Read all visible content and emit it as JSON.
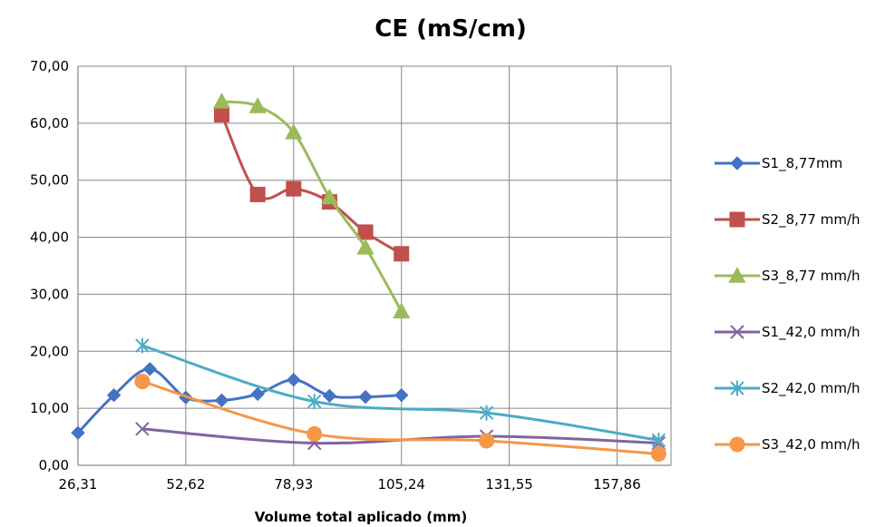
{
  "chart_data": {
    "type": "line",
    "title": "CE (mS/cm)",
    "xlabel": "Volume total aplicado (mm)",
    "ylabel": "",
    "xlim": [
      26.31,
      171.02
    ],
    "ylim": [
      0,
      70
    ],
    "x_ticks": [
      "26,31",
      "52,62",
      "78,93",
      "105,24",
      "131,55",
      "157,86"
    ],
    "y_ticks": [
      "0,00",
      "10,00",
      "20,00",
      "30,00",
      "40,00",
      "50,00",
      "60,00",
      "70,00"
    ],
    "grid": true,
    "legend_position": "right",
    "series": [
      {
        "name": "S1_8,77mm",
        "color": "#4472C4",
        "marker": "diamond",
        "x": [
          26.31,
          35.08,
          43.85,
          52.62,
          61.39,
          70.16,
          78.93,
          87.7,
          96.47,
          105.24
        ],
        "y": [
          5.7,
          12.3,
          16.9,
          11.9,
          11.4,
          12.5,
          15.0,
          12.2,
          12.0,
          12.3
        ]
      },
      {
        "name": "S2_8,77 mm/h",
        "color": "#C0504D",
        "marker": "square",
        "x": [
          61.39,
          70.16,
          78.93,
          87.7,
          96.47,
          105.24
        ],
        "y": [
          61.5,
          47.5,
          48.5,
          46.2,
          40.9,
          37.1
        ]
      },
      {
        "name": "S3_8,77 mm/h",
        "color": "#9BBB59",
        "marker": "triangle",
        "x": [
          61.39,
          70.16,
          78.93,
          87.7,
          96.47,
          105.24
        ],
        "y": [
          63.8,
          63.0,
          58.4,
          47.0,
          38.2,
          27.0
        ]
      },
      {
        "name": "S1_42,0 mm/h",
        "color": "#8064A2",
        "marker": "x",
        "x": [
          42.0,
          84.0,
          126.0,
          168.0
        ],
        "y": [
          6.4,
          3.9,
          5.1,
          3.9
        ]
      },
      {
        "name": "S2_42,0 mm/h",
        "color": "#4BACC6",
        "marker": "star",
        "x": [
          42.0,
          84.0,
          126.0,
          168.0
        ],
        "y": [
          21.0,
          11.2,
          9.2,
          4.4
        ]
      },
      {
        "name": "S3_42,0 mm/h",
        "color": "#F79646",
        "marker": "circle",
        "x": [
          42.0,
          84.0,
          126.0,
          168.0
        ],
        "y": [
          14.7,
          5.5,
          4.3,
          2.0
        ]
      }
    ]
  }
}
